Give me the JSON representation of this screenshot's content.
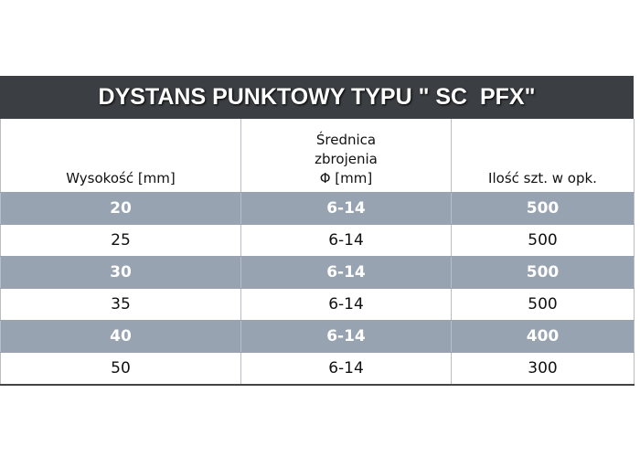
{
  "table": {
    "title": "DYSTANS PUNKTOWY TYPU \" SC  PFX\"",
    "headers": [
      "Wysokość [mm]",
      "Średnica\nzbrojenia\nΦ [mm]",
      "Ilość szt. w opk."
    ],
    "rows": [
      [
        20,
        "6-14",
        500
      ],
      [
        25,
        "6-14",
        500
      ],
      [
        30,
        "6-14",
        500
      ],
      [
        35,
        "6-14",
        500
      ],
      [
        40,
        "6-14",
        400
      ],
      [
        50,
        "6-14",
        300
      ]
    ]
  }
}
